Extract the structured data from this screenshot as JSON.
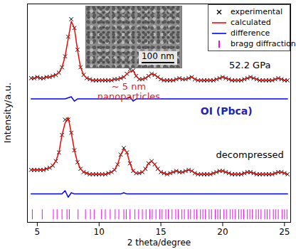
{
  "chart_data": {
    "type": "line",
    "x_label": "2 theta/degree",
    "y_label": "Intensity/a.u.",
    "xlim": [
      4.2,
      25.5
    ],
    "xticks": [
      5,
      10,
      15,
      20,
      25
    ],
    "ylim": [
      0,
      100
    ],
    "tick_labels": "x",
    "legend": "top-right",
    "x": [
      4.5,
      4.75,
      5,
      5.25,
      5.5,
      5.75,
      6,
      6.25,
      6.5,
      6.75,
      7,
      7.25,
      7.5,
      7.75,
      8,
      8.25,
      8.5,
      8.75,
      9,
      9.25,
      9.5,
      9.75,
      10,
      10.25,
      10.5,
      10.75,
      11,
      11.25,
      11.5,
      11.75,
      12,
      12.25,
      12.5,
      12.75,
      13,
      13.25,
      13.5,
      13.75,
      14,
      14.25,
      14.5,
      14.75,
      15,
      15.25,
      15.5,
      15.75,
      16,
      16.25,
      16.5,
      16.75,
      17,
      17.25,
      17.5,
      17.75,
      18,
      18.25,
      18.5,
      18.75,
      19,
      19.25,
      19.5,
      19.75,
      20,
      20.25,
      20.5,
      20.75,
      21,
      21.25,
      21.5,
      21.75,
      22,
      22.25,
      22.5,
      22.75,
      23,
      23.25,
      23.5,
      23.75,
      24,
      24.25,
      24.5,
      24.75,
      25,
      25.25
    ],
    "series": [
      {
        "name": "experimental",
        "type": "scatter",
        "marker": "x",
        "color": "#000000",
        "values": [
          66,
          66,
          66.5,
          66,
          66,
          66.5,
          66.5,
          67,
          67.5,
          68.5,
          71,
          76,
          85,
          93,
          89,
          79,
          71,
          67.5,
          66,
          65.5,
          65,
          65,
          65,
          65,
          65,
          65,
          65,
          65.5,
          65.5,
          66,
          66.5,
          68,
          70,
          69.5,
          67,
          65.5,
          65.5,
          66,
          67,
          68,
          67.5,
          66.5,
          65.5,
          65,
          65,
          65,
          65,
          65.5,
          66,
          65.5,
          65.5,
          66,
          66.5,
          65.5,
          65,
          65,
          65,
          65,
          65,
          65,
          65.5,
          66,
          66.5,
          66,
          65.5,
          65,
          65,
          65,
          65,
          65.5,
          66,
          66.5,
          66,
          65.5,
          65,
          65,
          65,
          65,
          65,
          65.5,
          66,
          65.5,
          65,
          65
        ]
      },
      {
        "name": "calculated",
        "type": "line",
        "color": "#ff0000",
        "values": [
          66,
          66,
          66.5,
          66,
          66,
          66.5,
          66.5,
          67,
          67.5,
          68.5,
          71,
          76,
          84,
          92,
          89,
          79,
          71,
          67.5,
          66,
          65.5,
          65,
          65,
          65,
          65,
          65,
          65,
          65,
          65.5,
          65.5,
          66,
          66.5,
          68,
          69,
          69.5,
          67,
          65.5,
          65.5,
          66,
          67,
          68,
          67.5,
          66.5,
          65.5,
          65,
          65,
          65,
          65,
          65.5,
          66,
          65.5,
          65.5,
          66,
          66.5,
          65.5,
          65,
          65,
          65,
          65,
          65,
          65,
          65.5,
          66,
          66.5,
          66,
          65.5,
          65,
          65,
          65,
          65,
          65.5,
          66,
          66.5,
          66,
          65.5,
          65,
          65,
          65,
          65,
          65,
          65.5,
          66,
          65.5,
          65,
          65
        ]
      },
      {
        "name": "difference",
        "type": "line",
        "color": "#0000ff",
        "values": [
          56.5,
          56.5,
          56.5,
          56.5,
          56.5,
          56.5,
          56.5,
          56.5,
          56.5,
          56.5,
          56.5,
          56.5,
          57,
          57.5,
          55.5,
          56.5,
          56.5,
          56.5,
          56.5,
          56.5,
          56.5,
          56.5,
          56.5,
          56.5,
          56.5,
          56.5,
          56.5,
          56.5,
          56.5,
          56.5,
          56.5,
          56.5,
          57.5,
          55.5,
          56.5,
          56.5,
          56.5,
          56.5,
          56.5,
          56.5,
          56.5,
          56.5,
          56.5,
          56.5,
          56.5,
          56.5,
          56.5,
          56.5,
          56.5,
          56.5,
          56.5,
          56.5,
          56.5,
          56.5,
          56.5,
          56.5,
          56.5,
          56.5,
          56.5,
          56.5,
          56.5,
          56.5,
          56.5,
          56.5,
          56.5,
          56.5,
          56.5,
          56.5,
          56.5,
          56.5,
          56.5,
          56.5,
          56.5,
          56.5,
          56.5,
          56.5,
          56.5,
          56.5,
          56.5,
          56.5,
          56.5,
          56.5,
          56.5,
          56.5
        ]
      },
      {
        "name": "experimental",
        "type": "scatter",
        "marker": "x",
        "color": "#000000",
        "values": [
          24,
          24,
          24,
          24,
          24,
          24.5,
          25,
          26,
          28,
          32,
          40,
          47,
          47,
          41,
          33,
          27.5,
          24.5,
          23,
          22.5,
          22,
          22,
          22,
          22,
          22,
          22,
          22.5,
          23,
          24,
          26.5,
          31,
          34,
          32,
          27,
          23.5,
          22.5,
          22.5,
          23,
          24.5,
          27,
          28,
          26.5,
          24.5,
          23,
          22.5,
          22,
          22.5,
          23,
          23.5,
          23,
          23,
          23.5,
          24,
          23.5,
          22.5,
          22,
          22,
          22,
          22,
          22,
          22.5,
          23,
          23.5,
          23.5,
          23,
          22.5,
          22,
          22,
          22,
          22,
          22.5,
          23,
          23,
          22.5,
          22,
          22,
          22,
          22,
          22,
          22,
          22.5,
          23,
          23,
          22.5,
          22
        ]
      },
      {
        "name": "calculated",
        "type": "line",
        "color": "#ff0000",
        "values": [
          24,
          24,
          24,
          24,
          24,
          24.5,
          25,
          26,
          28,
          32,
          40,
          45.5,
          48,
          41,
          33,
          27.5,
          24.5,
          23,
          22.5,
          22,
          22,
          22,
          22,
          22,
          22,
          22.5,
          23,
          24,
          26.5,
          31,
          33.5,
          32,
          27,
          23.5,
          22.5,
          22.5,
          23,
          24.5,
          27,
          28,
          26.5,
          24.5,
          23,
          22.5,
          22,
          22.5,
          23,
          23.5,
          23,
          23,
          23.5,
          24,
          23.5,
          22.5,
          22,
          22,
          22,
          22,
          22,
          22.5,
          23,
          23.5,
          23.5,
          23,
          22.5,
          22,
          22,
          22,
          22,
          22.5,
          23,
          23,
          22.5,
          22,
          22,
          22,
          22,
          22,
          22,
          22.5,
          23,
          23,
          22.5,
          22
        ]
      },
      {
        "name": "difference",
        "type": "line",
        "color": "#0000ff",
        "values": [
          13,
          13,
          13,
          13,
          13,
          13,
          13,
          13,
          13,
          13,
          13,
          14.5,
          11.5,
          13.5,
          13,
          13,
          13,
          13,
          13,
          13,
          13,
          13,
          13,
          13,
          13,
          13,
          13,
          13,
          13,
          13,
          13.5,
          13,
          13,
          13,
          13,
          13,
          13,
          13,
          13,
          13,
          13,
          13,
          13,
          13,
          13,
          13,
          13,
          13,
          13,
          13,
          13,
          13,
          13,
          13,
          13,
          13,
          13,
          13,
          13,
          13,
          13,
          13,
          13,
          13,
          13,
          13,
          13,
          13,
          13,
          13,
          13,
          13,
          13,
          13,
          13,
          13,
          13,
          13,
          13,
          13,
          13,
          13,
          13,
          13
        ]
      },
      {
        "name": "bragg diffraction",
        "type": "tick",
        "color": "#ff00ff",
        "positions": [
          4.6,
          5.4,
          6.3,
          6.6,
          7.0,
          7.4,
          7.6,
          8.3,
          8.9,
          9.3,
          9.6,
          10.2,
          10.5,
          10.9,
          11.3,
          11.6,
          12.0,
          12.2,
          12.5,
          12.9,
          13.2,
          13.5,
          13.8,
          14.1,
          14.3,
          14.6,
          14.9,
          15.1,
          15.4,
          15.6,
          15.9,
          16.2,
          16.4,
          16.7,
          16.9,
          17.2,
          17.4,
          17.7,
          17.9,
          18.2,
          18.4,
          18.6,
          18.9,
          19.1,
          19.4,
          19.6,
          19.8,
          20.1,
          20.3,
          20.6,
          20.8,
          21.0,
          21.3,
          21.5,
          21.7,
          22.0,
          22.2,
          22.4,
          22.7,
          22.9,
          23.1,
          23.4,
          23.6,
          23.8,
          24.1,
          24.3,
          24.5,
          24.8,
          25.0,
          25.2
        ]
      }
    ],
    "annotations": [
      {
        "text": "52.2 GPa",
        "color": "#000000"
      },
      {
        "text": "~ 5 nm\nnanoparticles",
        "color": "#e8202a"
      },
      {
        "text": "OI (Pbca)",
        "color": "#2222bb"
      },
      {
        "text": "decompressed",
        "color": "#000000"
      }
    ],
    "inset_scale_label": "100 nm"
  }
}
